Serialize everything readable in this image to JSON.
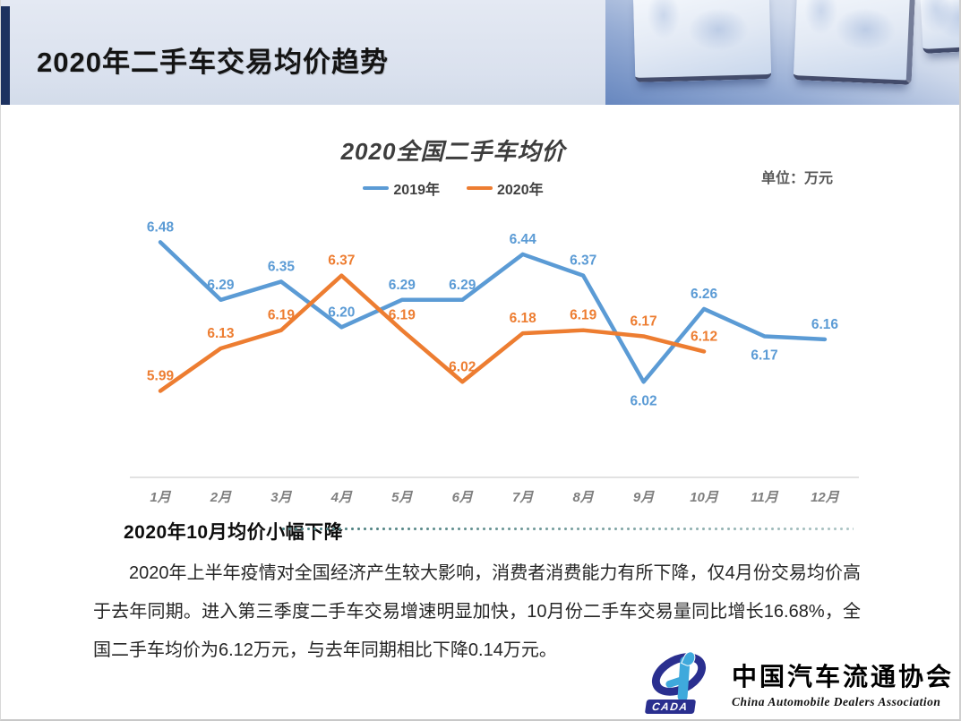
{
  "header": {
    "title": "2020年二手车交易均价趋势"
  },
  "chart": {
    "title": "2020全国二手车均价",
    "unit_label": "单位：万元"
  },
  "chart_data": {
    "type": "line",
    "title": "2020全国二手车均价",
    "unit": "万元",
    "categories": [
      "1月",
      "2月",
      "3月",
      "4月",
      "5月",
      "6月",
      "7月",
      "8月",
      "9月",
      "10月",
      "11月",
      "12月"
    ],
    "series": [
      {
        "name": "2019年",
        "color": "#5B9BD5",
        "values": [
          6.48,
          6.29,
          6.35,
          6.2,
          6.29,
          6.29,
          6.44,
          6.37,
          6.02,
          6.26,
          6.17,
          6.16
        ],
        "label_below_indices": [
          8,
          10
        ]
      },
      {
        "name": "2020年",
        "color": "#ED7D31",
        "values": [
          5.99,
          6.13,
          6.19,
          6.37,
          6.19,
          6.02,
          6.18,
          6.19,
          6.17,
          6.12
        ],
        "label_below_indices": []
      }
    ],
    "ylim": [
      5.9,
      6.6
    ],
    "grid": false,
    "legend_position": "top",
    "data_labels": true,
    "axis_color": "#d9d9d9",
    "month_label_color": "#7f7f7f"
  },
  "section": {
    "heading": "2020年10月均价小幅下降",
    "paragraph": "2020年上半年疫情对全国经济产生较大影响，消费者消费能力有所下降，仅4月份交易均价高于去年同期。进入第三季度二手车交易增速明显加快，10月份二手车交易量同比增长16.68%，全国二手车均价为6.12万元，与去年同期相比下降0.14万元。"
  },
  "logo": {
    "acronym": "CADA",
    "name_cn": "中国汽车流通协会",
    "name_en": "China  Automobile  Dealers  Association"
  }
}
